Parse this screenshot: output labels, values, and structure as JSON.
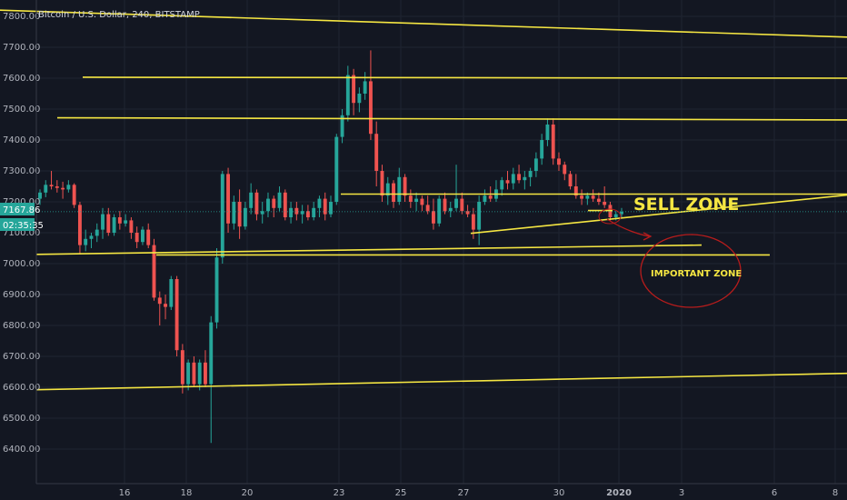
{
  "chart_data": {
    "type": "candlestick",
    "title": "Bitcoin / U.S. Dollar, 240, BITSTAMP",
    "ylim": [
      6340,
      7870
    ],
    "y_ticks": [
      "7800.00",
      "7700.00",
      "7600.00",
      "7500.00",
      "7400.00",
      "7300.00",
      "7200.00",
      "7100.00",
      "7000.00",
      "6900.00",
      "6800.00",
      "6700.00",
      "6600.00",
      "6500.00",
      "6400.00"
    ],
    "x_ticks": [
      "16",
      "18",
      "20",
      "23",
      "25",
      "27",
      "30",
      "2020",
      "3",
      "6",
      "8"
    ],
    "price_badge": "7167.86",
    "countdown_badge": "02:35:35",
    "candles": [
      [
        7210,
        7240,
        7190,
        7230
      ],
      [
        7230,
        7270,
        7215,
        7255
      ],
      [
        7255,
        7300,
        7240,
        7250
      ],
      [
        7250,
        7270,
        7230,
        7245
      ],
      [
        7245,
        7265,
        7210,
        7240
      ],
      [
        7240,
        7270,
        7230,
        7255
      ],
      [
        7255,
        7260,
        7180,
        7190
      ],
      [
        7190,
        7200,
        7030,
        7060
      ],
      [
        7060,
        7110,
        7040,
        7080
      ],
      [
        7080,
        7100,
        7050,
        7090
      ],
      [
        7090,
        7130,
        7070,
        7110
      ],
      [
        7110,
        7180,
        7080,
        7160
      ],
      [
        7160,
        7180,
        7090,
        7100
      ],
      [
        7100,
        7160,
        7090,
        7150
      ],
      [
        7150,
        7170,
        7110,
        7130
      ],
      [
        7130,
        7160,
        7120,
        7140
      ],
      [
        7140,
        7150,
        7080,
        7100
      ],
      [
        7100,
        7120,
        7050,
        7070
      ],
      [
        7070,
        7120,
        7060,
        7110
      ],
      [
        7110,
        7130,
        7050,
        7060
      ],
      [
        7060,
        7080,
        6880,
        6890
      ],
      [
        6890,
        6910,
        6800,
        6870
      ],
      [
        6870,
        6900,
        6820,
        6860
      ],
      [
        6860,
        6960,
        6850,
        6950
      ],
      [
        6950,
        6960,
        6700,
        6720
      ],
      [
        6720,
        6740,
        6580,
        6610
      ],
      [
        6610,
        6690,
        6590,
        6680
      ],
      [
        6680,
        6700,
        6600,
        6610
      ],
      [
        6610,
        6690,
        6590,
        6680
      ],
      [
        6680,
        6720,
        6600,
        6610
      ],
      [
        6610,
        6830,
        6420,
        6810
      ],
      [
        6810,
        7050,
        6790,
        7020
      ],
      [
        7020,
        7300,
        7000,
        7290
      ],
      [
        7290,
        7310,
        7100,
        7130
      ],
      [
        7130,
        7220,
        7110,
        7200
      ],
      [
        7200,
        7240,
        7080,
        7120
      ],
      [
        7120,
        7200,
        7110,
        7180
      ],
      [
        7180,
        7260,
        7160,
        7230
      ],
      [
        7230,
        7240,
        7140,
        7160
      ],
      [
        7160,
        7200,
        7130,
        7170
      ],
      [
        7170,
        7230,
        7150,
        7210
      ],
      [
        7210,
        7220,
        7150,
        7180
      ],
      [
        7180,
        7250,
        7170,
        7230
      ],
      [
        7230,
        7240,
        7140,
        7150
      ],
      [
        7150,
        7200,
        7130,
        7180
      ],
      [
        7180,
        7200,
        7140,
        7160
      ],
      [
        7160,
        7190,
        7130,
        7170
      ],
      [
        7170,
        7190,
        7140,
        7150
      ],
      [
        7150,
        7200,
        7140,
        7180
      ],
      [
        7180,
        7220,
        7150,
        7210
      ],
      [
        7210,
        7230,
        7140,
        7160
      ],
      [
        7160,
        7220,
        7150,
        7200
      ],
      [
        7200,
        7420,
        7190,
        7410
      ],
      [
        7410,
        7500,
        7390,
        7480
      ],
      [
        7480,
        7640,
        7460,
        7610
      ],
      [
        7610,
        7630,
        7480,
        7520
      ],
      [
        7520,
        7570,
        7490,
        7550
      ],
      [
        7550,
        7620,
        7530,
        7590
      ],
      [
        7590,
        7690,
        7400,
        7420
      ],
      [
        7420,
        7460,
        7250,
        7300
      ],
      [
        7300,
        7320,
        7200,
        7220
      ],
      [
        7220,
        7280,
        7190,
        7260
      ],
      [
        7260,
        7270,
        7180,
        7200
      ],
      [
        7200,
        7310,
        7190,
        7280
      ],
      [
        7280,
        7290,
        7200,
        7220
      ],
      [
        7220,
        7240,
        7180,
        7200
      ],
      [
        7200,
        7230,
        7170,
        7210
      ],
      [
        7210,
        7220,
        7170,
        7190
      ],
      [
        7190,
        7220,
        7160,
        7170
      ],
      [
        7170,
        7210,
        7110,
        7130
      ],
      [
        7130,
        7220,
        7120,
        7210
      ],
      [
        7210,
        7230,
        7160,
        7170
      ],
      [
        7170,
        7200,
        7150,
        7180
      ],
      [
        7180,
        7320,
        7170,
        7210
      ],
      [
        7210,
        7230,
        7160,
        7170
      ],
      [
        7170,
        7190,
        7150,
        7160
      ],
      [
        7160,
        7180,
        7080,
        7110
      ],
      [
        7110,
        7220,
        7060,
        7200
      ],
      [
        7200,
        7240,
        7190,
        7220
      ],
      [
        7220,
        7250,
        7200,
        7210
      ],
      [
        7210,
        7270,
        7200,
        7240
      ],
      [
        7240,
        7280,
        7220,
        7270
      ],
      [
        7270,
        7300,
        7240,
        7260
      ],
      [
        7260,
        7310,
        7240,
        7290
      ],
      [
        7290,
        7320,
        7260,
        7270
      ],
      [
        7270,
        7300,
        7240,
        7280
      ],
      [
        7280,
        7310,
        7250,
        7300
      ],
      [
        7300,
        7360,
        7280,
        7340
      ],
      [
        7340,
        7420,
        7320,
        7400
      ],
      [
        7400,
        7470,
        7380,
        7450
      ],
      [
        7450,
        7470,
        7320,
        7340
      ],
      [
        7340,
        7360,
        7300,
        7320
      ],
      [
        7320,
        7330,
        7270,
        7290
      ],
      [
        7290,
        7300,
        7240,
        7250
      ],
      [
        7250,
        7290,
        7210,
        7220
      ],
      [
        7220,
        7240,
        7190,
        7210
      ],
      [
        7210,
        7230,
        7190,
        7220
      ],
      [
        7220,
        7240,
        7200,
        7210
      ],
      [
        7210,
        7230,
        7190,
        7200
      ],
      [
        7200,
        7250,
        7180,
        7190
      ],
      [
        7190,
        7200,
        7140,
        7150
      ],
      [
        7150,
        7170,
        7140,
        7160
      ],
      [
        7160,
        7180,
        7150,
        7168
      ]
    ],
    "trend_lines": [
      [
        [
          0,
          7820
        ],
        [
          932,
          7733
        ]
      ],
      [
        [
          91,
          7603
        ],
        [
          932,
          7600
        ]
      ],
      [
        [
          63,
          7472
        ],
        [
          932,
          7465
        ]
      ],
      [
        [
          375,
          7225
        ],
        [
          932,
          7225
        ]
      ],
      [
        [
          518,
          7098
        ],
        [
          932,
          7222
        ]
      ],
      [
        [
          40,
          7030
        ],
        [
          772,
          7060
        ]
      ],
      [
        [
          172,
          7028
        ],
        [
          847,
          7028
        ]
      ],
      [
        [
          40,
          6592
        ],
        [
          932,
          6645
        ]
      ],
      [
        [
          647,
          7172
        ],
        [
          674,
          7172
        ]
      ]
    ],
    "annotations": [
      {
        "text": "SELL ZONE"
      },
      {
        "text": "IMPORTANT ZONE"
      }
    ],
    "grid": true
  }
}
